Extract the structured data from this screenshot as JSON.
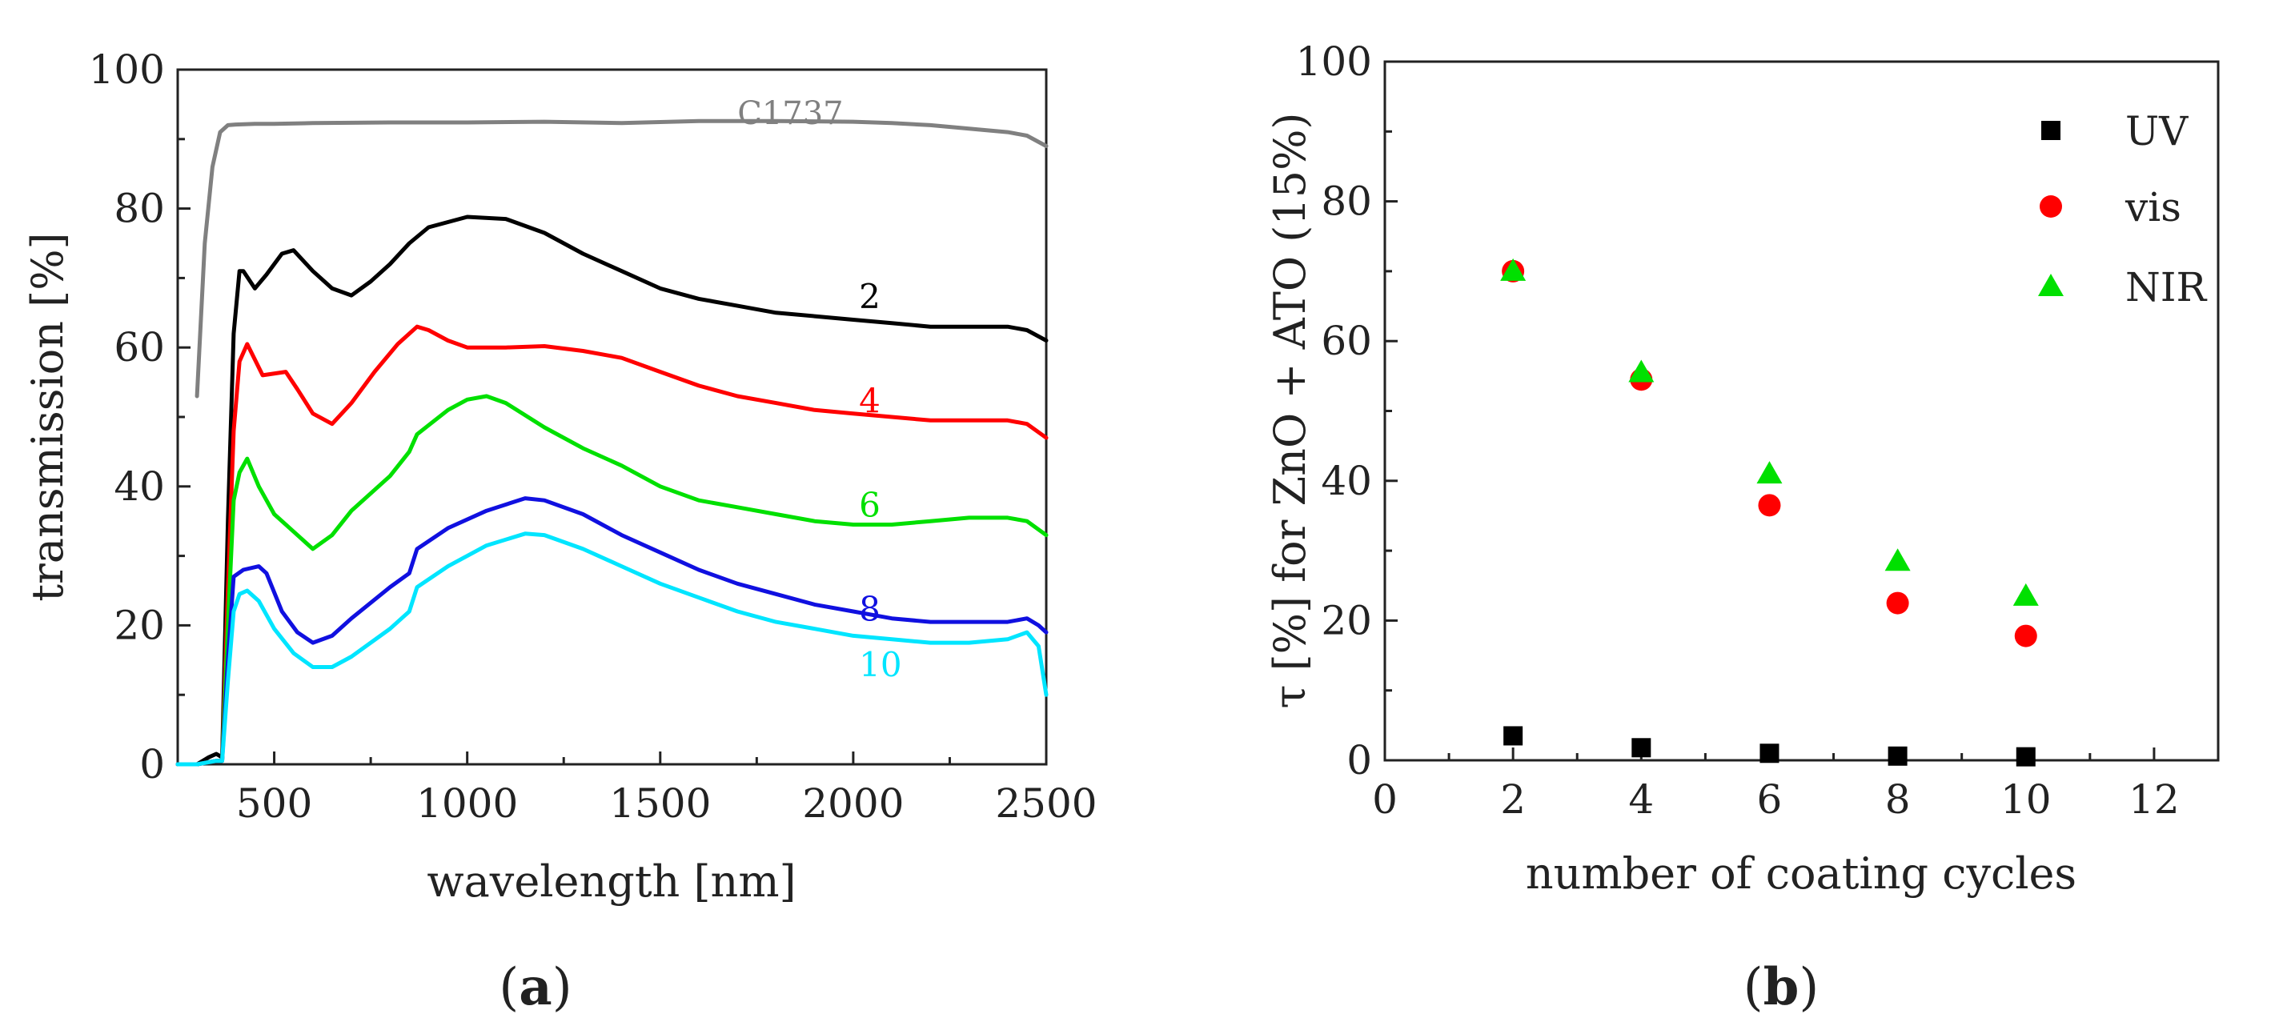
{
  "figure": {
    "panel_a_label": {
      "open": "(",
      "letter": "a",
      "close": ")"
    },
    "panel_b_label": {
      "open": "(",
      "letter": "b",
      "close": ")"
    }
  },
  "colors": {
    "gray": "#808080",
    "black": "#000000",
    "red": "#ff0000",
    "green": "#00e000",
    "blue": "#1010e0",
    "cyan": "#00e5ff"
  },
  "chart_data": [
    {
      "type": "line",
      "panel": "a",
      "xlabel": "wavelength [nm]",
      "ylabel": "transmission [%]",
      "xlim": [
        250,
        2500
      ],
      "ylim": [
        0,
        100
      ],
      "xticks": [
        500,
        1000,
        1500,
        2000,
        2500
      ],
      "yticks": [
        0,
        20,
        40,
        60,
        80,
        100
      ],
      "series": [
        {
          "name": "C1737",
          "label": "C1737",
          "color": "#808080",
          "label_at": [
            1700,
            94
          ],
          "x": [
            300,
            320,
            340,
            360,
            380,
            400,
            450,
            500,
            600,
            800,
            1000,
            1200,
            1400,
            1600,
            1800,
            2000,
            2100,
            2200,
            2300,
            2400,
            2450,
            2500
          ],
          "y": [
            53,
            75,
            86,
            91,
            92,
            92.1,
            92.2,
            92.2,
            92.3,
            92.4,
            92.4,
            92.5,
            92.3,
            92.6,
            92.6,
            92.5,
            92.3,
            92.0,
            91.5,
            91.0,
            90.5,
            89
          ]
        },
        {
          "name": "2",
          "label": "2",
          "color": "#000000",
          "label_at": [
            2015,
            67.5
          ],
          "x": [
            250,
            300,
            330,
            350,
            365,
            380,
            395,
            410,
            420,
            450,
            480,
            520,
            550,
            600,
            650,
            700,
            750,
            800,
            850,
            900,
            1000,
            1100,
            1200,
            1300,
            1400,
            1500,
            1600,
            1700,
            1800,
            1900,
            2000,
            2100,
            2200,
            2300,
            2400,
            2450,
            2500
          ],
          "y": [
            0,
            0,
            1,
            1.5,
            1,
            35,
            62,
            71,
            71,
            68.5,
            70.5,
            73.5,
            74,
            71,
            68.5,
            67.5,
            69.5,
            72,
            75,
            77.3,
            78.8,
            78.5,
            76.5,
            73.5,
            71,
            68.5,
            67,
            66,
            65,
            64.5,
            64,
            63.5,
            63,
            63,
            63,
            62.5,
            61
          ]
        },
        {
          "name": "4",
          "label": "4",
          "color": "#ff0000",
          "label_at": [
            2015,
            52.5
          ],
          "x": [
            250,
            300,
            350,
            365,
            380,
            395,
            410,
            430,
            470,
            530,
            560,
            600,
            650,
            700,
            760,
            820,
            870,
            900,
            950,
            1000,
            1100,
            1200,
            1300,
            1400,
            1500,
            1600,
            1700,
            1800,
            1900,
            2000,
            2100,
            2200,
            2300,
            2400,
            2450,
            2500
          ],
          "y": [
            0,
            0,
            0.5,
            0.5,
            25,
            48,
            58,
            60.5,
            56,
            56.5,
            54,
            50.5,
            49,
            52,
            56.5,
            60.5,
            63,
            62.5,
            61,
            60,
            60,
            60.2,
            59.5,
            58.5,
            56.5,
            54.5,
            53,
            52,
            51,
            50.5,
            50,
            49.5,
            49.5,
            49.5,
            49,
            47
          ]
        },
        {
          "name": "6",
          "label": "6",
          "color": "#00e000",
          "label_at": [
            2015,
            37.5
          ],
          "x": [
            250,
            300,
            350,
            365,
            380,
            395,
            410,
            430,
            460,
            500,
            550,
            600,
            650,
            700,
            800,
            850,
            870,
            950,
            1000,
            1050,
            1100,
            1200,
            1300,
            1400,
            1500,
            1600,
            1700,
            1800,
            1900,
            2000,
            2100,
            2200,
            2300,
            2400,
            2450,
            2500
          ],
          "y": [
            0,
            0,
            0.5,
            0.5,
            20,
            38,
            42,
            44,
            40,
            36,
            33.5,
            31,
            33,
            36.5,
            41.5,
            45,
            47.5,
            51,
            52.5,
            53,
            52,
            48.5,
            45.5,
            43,
            40,
            38,
            37,
            36,
            35,
            34.5,
            34.5,
            35,
            35.5,
            35.5,
            35,
            33
          ]
        },
        {
          "name": "8",
          "label": "8",
          "color": "#1010e0",
          "label_at": [
            2015,
            22.5
          ],
          "x": [
            250,
            300,
            350,
            365,
            380,
            395,
            420,
            460,
            480,
            520,
            560,
            600,
            650,
            700,
            800,
            850,
            870,
            950,
            1050,
            1150,
            1200,
            1300,
            1400,
            1500,
            1600,
            1700,
            1800,
            1900,
            2000,
            2100,
            2200,
            2300,
            2400,
            2450,
            2480,
            2500
          ],
          "y": [
            0,
            0,
            0.5,
            0.5,
            15,
            27,
            28,
            28.5,
            27.5,
            22,
            19,
            17.5,
            18.5,
            21,
            25.5,
            27.5,
            31,
            34,
            36.5,
            38.3,
            38,
            36,
            33,
            30.5,
            28,
            26,
            24.5,
            23,
            22,
            21,
            20.5,
            20.5,
            20.5,
            21,
            20,
            19
          ]
        },
        {
          "name": "10",
          "label": "10",
          "color": "#00e5ff",
          "label_at": [
            2015,
            14.5
          ],
          "x": [
            250,
            300,
            350,
            365,
            380,
            395,
            410,
            430,
            460,
            500,
            550,
            600,
            650,
            700,
            800,
            850,
            870,
            950,
            1050,
            1150,
            1200,
            1300,
            1400,
            1500,
            1600,
            1700,
            1800,
            1900,
            2000,
            2100,
            2200,
            2300,
            2400,
            2450,
            2480,
            2500
          ],
          "y": [
            0,
            0,
            0.5,
            0.5,
            12,
            22,
            24.5,
            25,
            23.5,
            19.5,
            16,
            14,
            14,
            15.5,
            19.5,
            22,
            25.5,
            28.5,
            31.5,
            33.2,
            33,
            31,
            28.5,
            26,
            24,
            22,
            20.5,
            19.5,
            18.5,
            18,
            17.5,
            17.5,
            18,
            19,
            17,
            10
          ]
        }
      ]
    },
    {
      "type": "scatter",
      "panel": "b",
      "xlabel": "number of coating cycles",
      "ylabel": "τ [%] for ZnO + ATO (15%)",
      "xlim": [
        0,
        13
      ],
      "ylim": [
        0,
        100
      ],
      "xticks": [
        0,
        2,
        4,
        6,
        8,
        10,
        12
      ],
      "yticks": [
        0,
        20,
        40,
        60,
        80,
        100
      ],
      "legend_position": "top-right",
      "series": [
        {
          "name": "UV",
          "label": "UV",
          "marker": "square",
          "color": "#000000",
          "x": [
            2,
            4,
            6,
            8,
            10
          ],
          "y": [
            3.5,
            1.8,
            1.0,
            0.6,
            0.5
          ]
        },
        {
          "name": "vis",
          "label": "vis",
          "marker": "circle",
          "color": "#ff0000",
          "x": [
            2,
            4,
            6,
            8,
            10
          ],
          "y": [
            70,
            54.5,
            36.5,
            22.5,
            17.8
          ]
        },
        {
          "name": "NIR",
          "label": "NIR",
          "marker": "triangle",
          "color": "#00e000",
          "x": [
            2,
            4,
            6,
            8,
            10
          ],
          "y": [
            70,
            55.5,
            41,
            28.5,
            23.5
          ]
        }
      ]
    }
  ]
}
